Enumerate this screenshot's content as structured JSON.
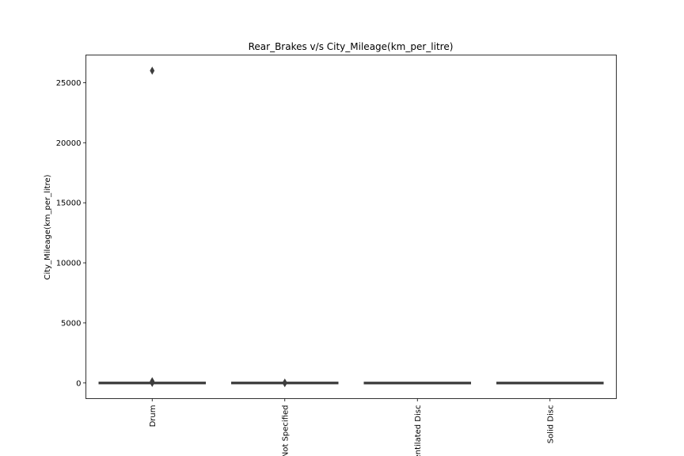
{
  "chart_data": {
    "type": "box",
    "title": "Rear_Brakes v/s City_Mileage(km_per_litre)",
    "xlabel": "",
    "ylabel": "City_Mileage(km_per_litre)",
    "categories": [
      "Drum",
      "Not Specified",
      "Ventilated Disc",
      "Solid Disc"
    ],
    "ylim": [
      -1300,
      27300
    ],
    "yticks": [
      0,
      5000,
      10000,
      15000,
      20000,
      25000
    ],
    "ytick_labels": [
      "0",
      "5000",
      "10000",
      "15000",
      "20000",
      "25000"
    ],
    "grid": false,
    "legend": "none",
    "box_color": "#3d3d3d",
    "boxes": [
      {
        "category": "Drum",
        "min": 7,
        "q1": 13,
        "median": 17,
        "q3": 20,
        "max": 30,
        "outliers": [
          26000,
          2,
          60,
          120,
          150
        ]
      },
      {
        "category": "Not Specified",
        "min": 8,
        "q1": 14,
        "median": 17,
        "q3": 21,
        "max": 28,
        "outliers": [
          -20,
          40
        ]
      },
      {
        "category": "Ventilated Disc",
        "min": 6,
        "q1": 10,
        "median": 13,
        "q3": 16,
        "max": 24,
        "outliers": []
      },
      {
        "category": "Solid Disc",
        "min": 6,
        "q1": 10,
        "median": 13,
        "q3": 16,
        "max": 24,
        "outliers": []
      }
    ]
  }
}
